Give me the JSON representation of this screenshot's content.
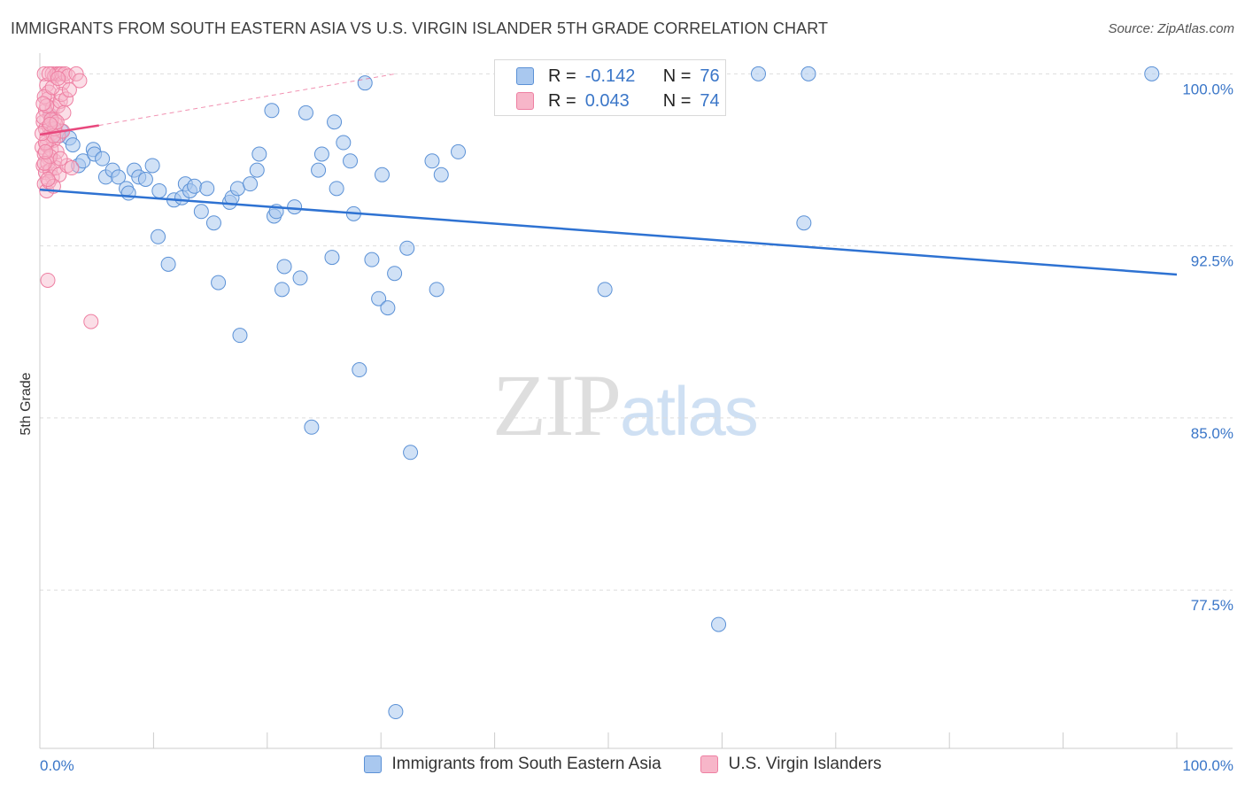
{
  "header": {
    "title": "IMMIGRANTS FROM SOUTH EASTERN ASIA VS U.S. VIRGIN ISLANDER 5TH GRADE CORRELATION CHART",
    "source": "Source: ZipAtlas.com"
  },
  "watermark": {
    "zip": "ZIP",
    "atlas": "atlas"
  },
  "legend": {
    "rows": [
      {
        "r_label": "R =",
        "r_value": "-0.142",
        "n_label": "N =",
        "n_value": "76",
        "color": "#5b9bd5"
      },
      {
        "r_label": "R =",
        "r_value": "0.043",
        "n_label": "N =",
        "n_value": "74",
        "color": "#f4a3bc"
      }
    ]
  },
  "colors": {
    "blue_fill": "#a9c8ef",
    "blue_stroke": "#5b91d6",
    "blue_line": "#2e72d2",
    "pink_fill": "#f7b6c9",
    "pink_stroke": "#ee7fa2",
    "pink_line": "#e8487d",
    "tick_text": "#3a76c8",
    "grid": "#dddddd"
  },
  "chart_data": {
    "type": "scatter",
    "title": "IMMIGRANTS FROM SOUTH EASTERN ASIA VS U.S. VIRGIN ISLANDER 5TH GRADE CORRELATION CHART",
    "xlabel": "",
    "ylabel": "5th Grade",
    "xlim": [
      0,
      100
    ],
    "ylim": [
      70.6,
      100.9
    ],
    "x_tick_labels": [
      "0.0%",
      "100.0%"
    ],
    "y_ticks": [
      {
        "value": 100,
        "label": "100.0%"
      },
      {
        "value": 92.5,
        "label": "92.5%"
      },
      {
        "value": 85,
        "label": "85.0%"
      },
      {
        "value": 77.5,
        "label": "77.5%"
      }
    ],
    "grid": "horizontal dashed",
    "legend_position": "bottom",
    "series": [
      {
        "name": "Immigrants from South Eastern Asia",
        "color": "#5b9bd5",
        "trend": [
          [
            0,
            94.95
          ],
          [
            100,
            91.25
          ]
        ],
        "points": [
          [
            0.9,
            98.2
          ],
          [
            1.2,
            97.6
          ],
          [
            1.7,
            97.3
          ],
          [
            1.9,
            97.5
          ],
          [
            2.6,
            97.2
          ],
          [
            2.9,
            96.9
          ],
          [
            3.4,
            96.0
          ],
          [
            3.8,
            96.2
          ],
          [
            4.7,
            96.7
          ],
          [
            4.8,
            96.5
          ],
          [
            5.5,
            96.3
          ],
          [
            5.8,
            95.5
          ],
          [
            6.4,
            95.8
          ],
          [
            6.9,
            95.5
          ],
          [
            7.6,
            95.0
          ],
          [
            7.8,
            94.8
          ],
          [
            8.3,
            95.8
          ],
          [
            8.7,
            95.5
          ],
          [
            9.3,
            95.4
          ],
          [
            9.9,
            96.0
          ],
          [
            10.5,
            94.9
          ],
          [
            10.4,
            92.9
          ],
          [
            11.3,
            91.7
          ],
          [
            11.8,
            94.5
          ],
          [
            12.5,
            94.6
          ],
          [
            12.8,
            95.2
          ],
          [
            13.2,
            94.9
          ],
          [
            13.6,
            95.1
          ],
          [
            14.2,
            94.0
          ],
          [
            14.7,
            95.0
          ],
          [
            15.3,
            93.5
          ],
          [
            15.7,
            90.9
          ],
          [
            16.7,
            94.4
          ],
          [
            16.9,
            94.6
          ],
          [
            17.4,
            95.0
          ],
          [
            17.6,
            88.6
          ],
          [
            18.5,
            95.2
          ],
          [
            19.1,
            95.8
          ],
          [
            19.3,
            96.5
          ],
          [
            20.4,
            98.4
          ],
          [
            20.6,
            93.8
          ],
          [
            20.8,
            94.0
          ],
          [
            21.3,
            90.6
          ],
          [
            21.5,
            91.6
          ],
          [
            22.4,
            94.2
          ],
          [
            22.9,
            91.1
          ],
          [
            23.4,
            98.3
          ],
          [
            23.9,
            84.6
          ],
          [
            24.5,
            95.8
          ],
          [
            24.8,
            96.5
          ],
          [
            25.7,
            92.0
          ],
          [
            25.9,
            97.9
          ],
          [
            26.1,
            95.0
          ],
          [
            26.7,
            97.0
          ],
          [
            27.3,
            96.2
          ],
          [
            27.6,
            93.9
          ],
          [
            28.1,
            87.1
          ],
          [
            28.6,
            99.6
          ],
          [
            29.2,
            91.9
          ],
          [
            29.8,
            90.2
          ],
          [
            30.1,
            95.6
          ],
          [
            30.6,
            89.8
          ],
          [
            31.2,
            91.3
          ],
          [
            32.3,
            92.4
          ],
          [
            32.6,
            83.5
          ],
          [
            34.5,
            96.2
          ],
          [
            34.9,
            90.6
          ],
          [
            35.3,
            95.6
          ],
          [
            36.8,
            96.6
          ],
          [
            49.7,
            90.6
          ],
          [
            59.7,
            76.0
          ],
          [
            63.2,
            100.0
          ],
          [
            67.2,
            93.5
          ],
          [
            67.6,
            100.0
          ],
          [
            97.8,
            100.0
          ],
          [
            31.3,
            72.2
          ]
        ]
      },
      {
        "name": "U.S. Virgin Islanders",
        "color": "#f4a3bc",
        "trend": [
          [
            0,
            97.35
          ],
          [
            5.2,
            97.75
          ]
        ],
        "trend_extension": [
          [
            5.2,
            97.75
          ],
          [
            31.3,
            100.0
          ]
        ],
        "points": [
          [
            0.4,
            100.0
          ],
          [
            0.6,
            99.5
          ],
          [
            0.8,
            99.2
          ],
          [
            1.1,
            100.0
          ],
          [
            1.3,
            99.9
          ],
          [
            1.5,
            100.0
          ],
          [
            1.7,
            100.0
          ],
          [
            1.9,
            100.0
          ],
          [
            2.0,
            99.6
          ],
          [
            2.2,
            100.0
          ],
          [
            2.5,
            99.9
          ],
          [
            3.2,
            100.0
          ],
          [
            3.5,
            99.7
          ],
          [
            0.5,
            98.4
          ],
          [
            0.7,
            98.9
          ],
          [
            0.9,
            98.2
          ],
          [
            1.1,
            98.5
          ],
          [
            1.3,
            98.0
          ],
          [
            1.6,
            98.6
          ],
          [
            1.8,
            98.8
          ],
          [
            2.1,
            98.3
          ],
          [
            0.3,
            97.9
          ],
          [
            0.5,
            97.6
          ],
          [
            0.6,
            97.2
          ],
          [
            0.8,
            97.7
          ],
          [
            1.0,
            97.4
          ],
          [
            1.2,
            97.1
          ],
          [
            1.4,
            97.8
          ],
          [
            1.6,
            97.3
          ],
          [
            2.0,
            97.5
          ],
          [
            0.2,
            96.8
          ],
          [
            0.4,
            96.5
          ],
          [
            0.6,
            96.9
          ],
          [
            0.8,
            96.3
          ],
          [
            1.0,
            96.7
          ],
          [
            1.3,
            96.2
          ],
          [
            1.5,
            96.6
          ],
          [
            0.3,
            96.0
          ],
          [
            0.5,
            95.7
          ],
          [
            0.7,
            96.1
          ],
          [
            0.9,
            95.8
          ],
          [
            1.1,
            95.5
          ],
          [
            1.4,
            95.9
          ],
          [
            1.7,
            95.6
          ],
          [
            0.4,
            95.2
          ],
          [
            0.6,
            94.9
          ],
          [
            0.8,
            95.3
          ],
          [
            1.2,
            95.1
          ],
          [
            0.7,
            91.0
          ],
          [
            4.5,
            89.2
          ],
          [
            0.3,
            98.1
          ],
          [
            0.5,
            97.0
          ],
          [
            0.9,
            96.4
          ],
          [
            1.3,
            97.6
          ],
          [
            1.9,
            99.1
          ],
          [
            2.3,
            98.9
          ],
          [
            0.4,
            99.0
          ],
          [
            0.6,
            98.6
          ],
          [
            1.0,
            98.0
          ],
          [
            1.2,
            97.3
          ],
          [
            0.2,
            97.4
          ],
          [
            0.4,
            96.1
          ],
          [
            0.7,
            95.4
          ],
          [
            1.5,
            97.9
          ],
          [
            2.4,
            96.0
          ],
          [
            2.6,
            99.3
          ],
          [
            1.8,
            96.3
          ],
          [
            0.3,
            98.7
          ],
          [
            1.1,
            99.4
          ],
          [
            0.8,
            100.0
          ],
          [
            1.6,
            99.8
          ],
          [
            0.5,
            96.6
          ],
          [
            2.8,
            95.9
          ],
          [
            0.9,
            97.8
          ]
        ]
      }
    ]
  }
}
